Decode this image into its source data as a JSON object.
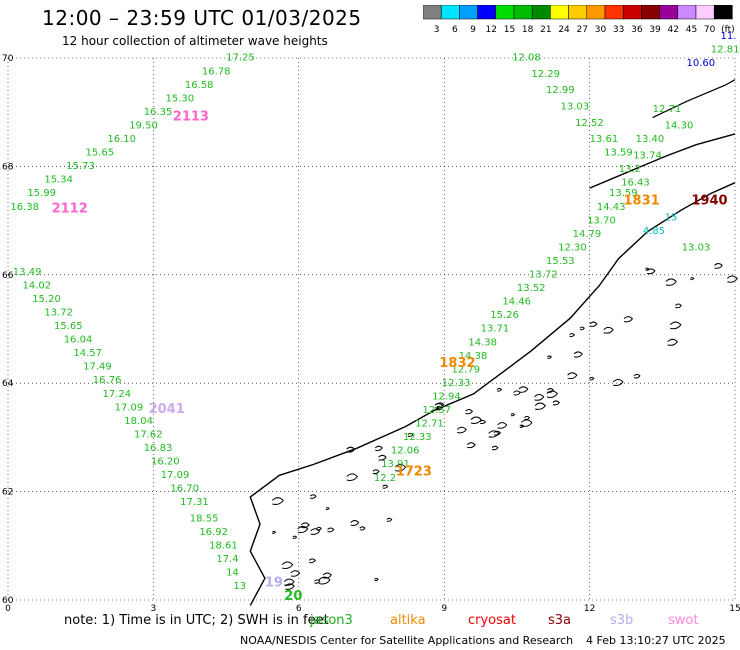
{
  "title": "12:00 – 23:59 UTC 01/03/2025",
  "subtitle": "12 hour collection of altimeter wave heights",
  "colorbar": {
    "colors": [
      "#808080",
      "#00e5ff",
      "#00a0ff",
      "#0000ff",
      "#00dd00",
      "#00bb00",
      "#008800",
      "#ffff00",
      "#ffcc00",
      "#ff9900",
      "#ff3300",
      "#cc0000",
      "#880000",
      "#990099",
      "#cc88ff",
      "#ffccff",
      "#000000"
    ],
    "labels": [
      "3",
      "6",
      "9",
      "12",
      "15",
      "18",
      "21",
      "24",
      "27",
      "30",
      "33",
      "36",
      "39",
      "42",
      "45",
      "70",
      "(ft)"
    ]
  },
  "axes": {
    "lat_ticks": [
      "70",
      "68",
      "66",
      "64",
      "62",
      "60"
    ],
    "lon_ticks": [
      "0",
      "3",
      "6",
      "9",
      "12",
      "15"
    ]
  },
  "tracks": [
    {
      "color": "#22bb22",
      "labels": [
        {
          "t": "17.25",
          "lon": 4.5,
          "lat": 69.95
        },
        {
          "t": "16.78",
          "lon": 4.0,
          "lat": 69.7
        },
        {
          "t": "16.58",
          "lon": 3.65,
          "lat": 69.45
        },
        {
          "t": "15.30",
          "lon": 3.25,
          "lat": 69.2
        },
        {
          "t": "16.35",
          "lon": 2.8,
          "lat": 68.95
        },
        {
          "t": "19.50",
          "lon": 2.5,
          "lat": 68.7
        },
        {
          "t": "16.10",
          "lon": 2.05,
          "lat": 68.45
        },
        {
          "t": "15.65",
          "lon": 1.6,
          "lat": 68.2
        },
        {
          "t": "15.73",
          "lon": 1.2,
          "lat": 67.95
        },
        {
          "t": "15.34",
          "lon": 0.75,
          "lat": 67.7
        },
        {
          "t": "15.99",
          "lon": 0.4,
          "lat": 67.45
        },
        {
          "t": "16.38",
          "lon": 0.05,
          "lat": 67.2
        }
      ]
    },
    {
      "color": "#22bb22",
      "labels": [
        {
          "t": "13.49",
          "lon": 0.1,
          "lat": 66.0
        },
        {
          "t": "14.02",
          "lon": 0.3,
          "lat": 65.75
        },
        {
          "t": "15.20",
          "lon": 0.5,
          "lat": 65.5
        },
        {
          "t": "13.72",
          "lon": 0.75,
          "lat": 65.25
        },
        {
          "t": "15.65",
          "lon": 0.95,
          "lat": 65.0
        },
        {
          "t": "16.04",
          "lon": 1.15,
          "lat": 64.75
        },
        {
          "t": "14.57",
          "lon": 1.35,
          "lat": 64.5
        },
        {
          "t": "17.49",
          "lon": 1.55,
          "lat": 64.25
        },
        {
          "t": "16.76",
          "lon": 1.75,
          "lat": 64.0
        },
        {
          "t": "17.24",
          "lon": 1.95,
          "lat": 63.75
        },
        {
          "t": "17.09",
          "lon": 2.2,
          "lat": 63.5
        },
        {
          "t": "18.04",
          "lon": 2.4,
          "lat": 63.25
        },
        {
          "t": "17.62",
          "lon": 2.6,
          "lat": 63.0
        },
        {
          "t": "16.83",
          "lon": 2.8,
          "lat": 62.75
        },
        {
          "t": "16.20",
          "lon": 2.95,
          "lat": 62.5
        },
        {
          "t": "17.09",
          "lon": 3.15,
          "lat": 62.25
        },
        {
          "t": "16.70",
          "lon": 3.35,
          "lat": 62.0
        },
        {
          "t": "17.31",
          "lon": 3.55,
          "lat": 61.75
        },
        {
          "t": "18.55",
          "lon": 3.75,
          "lat": 61.45
        },
        {
          "t": "16.92",
          "lon": 3.95,
          "lat": 61.2
        },
        {
          "t": "18.61",
          "lon": 4.15,
          "lat": 60.95
        },
        {
          "t": "17.4",
          "lon": 4.3,
          "lat": 60.7
        },
        {
          "t": "14",
          "lon": 4.5,
          "lat": 60.45
        },
        {
          "t": "13",
          "lon": 4.65,
          "lat": 60.2
        }
      ]
    },
    {
      "color": "#22bb22",
      "labels": [
        {
          "t": "12.08",
          "lon": 10.4,
          "lat": 69.95
        },
        {
          "t": "12.29",
          "lon": 10.8,
          "lat": 69.65
        },
        {
          "t": "12.99",
          "lon": 11.1,
          "lat": 69.35
        },
        {
          "t": "13.03",
          "lon": 11.4,
          "lat": 69.05
        },
        {
          "t": "12.52",
          "lon": 11.7,
          "lat": 68.75
        },
        {
          "t": "13.61",
          "lon": 12.0,
          "lat": 68.45
        },
        {
          "t": "13.59",
          "lon": 12.3,
          "lat": 68.2
        },
        {
          "t": "13.74",
          "lon": 12.9,
          "lat": 68.15
        },
        {
          "t": "13.40",
          "lon": 12.95,
          "lat": 68.45
        },
        {
          "t": "14.30",
          "lon": 13.55,
          "lat": 68.7
        },
        {
          "t": "12.71",
          "lon": 13.3,
          "lat": 69.0
        },
        {
          "t": "13.2",
          "lon": 12.6,
          "lat": 67.9
        },
        {
          "t": "16.43",
          "lon": 12.65,
          "lat": 67.65
        },
        {
          "t": "13.59",
          "lon": 12.4,
          "lat": 67.45
        },
        {
          "t": "14.43",
          "lon": 12.15,
          "lat": 67.2
        },
        {
          "t": "13.70",
          "lon": 11.95,
          "lat": 66.95
        },
        {
          "t": "14.79",
          "lon": 11.65,
          "lat": 66.7
        },
        {
          "t": "12.30",
          "lon": 11.35,
          "lat": 66.45
        },
        {
          "t": "15.53",
          "lon": 11.1,
          "lat": 66.2
        },
        {
          "t": "13.72",
          "lon": 10.75,
          "lat": 65.95
        },
        {
          "t": "13.52",
          "lon": 10.5,
          "lat": 65.7
        },
        {
          "t": "14.46",
          "lon": 10.2,
          "lat": 65.45
        },
        {
          "t": "15.26",
          "lon": 9.95,
          "lat": 65.2
        },
        {
          "t": "13.71",
          "lon": 9.75,
          "lat": 64.95
        },
        {
          "t": "14.38",
          "lon": 9.5,
          "lat": 64.7
        },
        {
          "t": "14.38",
          "lon": 9.3,
          "lat": 64.45
        },
        {
          "t": "12.79",
          "lon": 9.15,
          "lat": 64.2
        },
        {
          "t": "12.33",
          "lon": 8.95,
          "lat": 63.95
        },
        {
          "t": "12.94",
          "lon": 8.75,
          "lat": 63.7
        },
        {
          "t": "12.57",
          "lon": 8.55,
          "lat": 63.45
        },
        {
          "t": "12.71",
          "lon": 8.4,
          "lat": 63.2
        },
        {
          "t": "12.33",
          "lon": 8.15,
          "lat": 62.95
        },
        {
          "t": "12.06",
          "lon": 7.9,
          "lat": 62.7
        },
        {
          "t": "13.91",
          "lon": 7.7,
          "lat": 62.45
        },
        {
          "t": "12.2",
          "lon": 7.55,
          "lat": 62.2
        },
        {
          "t": "13.03",
          "lon": 13.9,
          "lat": 66.45
        },
        {
          "t": "12.81",
          "lon": 14.5,
          "lat": 70.1
        }
      ]
    },
    {
      "color": "#00bbbb",
      "labels": [
        {
          "t": "4.85",
          "lon": 13.1,
          "lat": 66.75
        },
        {
          "t": "15",
          "lon": 13.55,
          "lat": 67.0
        }
      ]
    },
    {
      "color": "#0000dd",
      "labels": [
        {
          "t": "10.60",
          "lon": 14.0,
          "lat": 69.85
        },
        {
          "t": "11.",
          "lon": 14.7,
          "lat": 70.35
        }
      ]
    }
  ],
  "passes": [
    {
      "t": "2113",
      "color": "#ff66cc",
      "lon": 3.4,
      "lat": 68.85
    },
    {
      "t": "2112",
      "color": "#ff66cc",
      "lon": 0.9,
      "lat": 67.15
    },
    {
      "t": "2041",
      "color": "#ccaaee",
      "lon": 2.9,
      "lat": 63.45
    },
    {
      "t": "1832",
      "color": "#ee8800",
      "lon": 8.9,
      "lat": 64.3
    },
    {
      "t": "1723",
      "color": "#ee8800",
      "lon": 8.0,
      "lat": 62.3
    },
    {
      "t": "1831",
      "color": "#ee8800",
      "lon": 12.7,
      "lat": 67.3
    },
    {
      "t": "1940",
      "color": "#880000",
      "lon": 14.1,
      "lat": 67.3
    },
    {
      "t": "19",
      "color": "#bbaaee",
      "lon": 5.3,
      "lat": 60.25
    },
    {
      "t": "20",
      "color": "#22bb22",
      "lon": 5.7,
      "lat": 60.0
    }
  ],
  "note": "note:  1) Time is in UTC;  2) SWH is in feet",
  "satellites": [
    {
      "name": "jason3",
      "color": "#22aa22"
    },
    {
      "name": "altika",
      "color": "#ee8800"
    },
    {
      "name": "cryosat",
      "color": "#ee0000"
    },
    {
      "name": "s3a",
      "color": "#880000"
    },
    {
      "name": "s3b",
      "color": "#bbaaee"
    },
    {
      "name": "swot",
      "color": "#ff88dd"
    }
  ],
  "credit": "NOAA/NESDIS Center for Satellite Applications and Research",
  "credit_time": "4 Feb 13:10:27 UTC 2025"
}
